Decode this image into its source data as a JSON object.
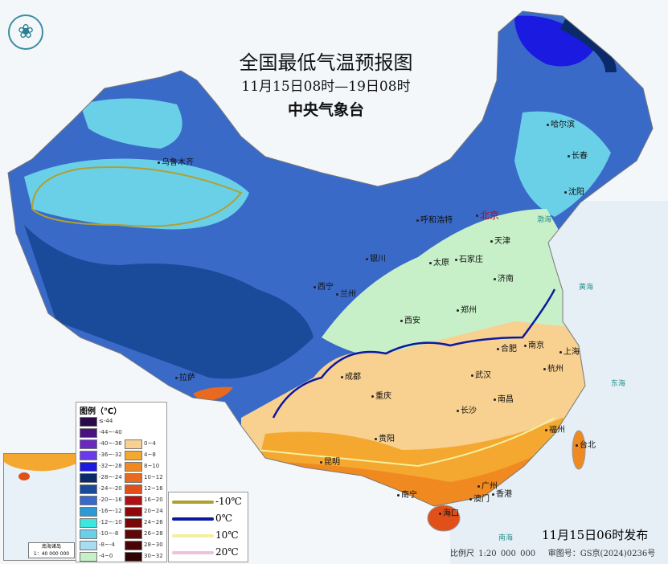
{
  "header": {
    "title": "全国最低气温预报图",
    "period": "11月15日08时—19日08时",
    "agency": "中央气象台",
    "logo_icon": "cma-logo-icon"
  },
  "cities": [
    {
      "name": "乌鲁木齐"
    },
    {
      "name": "哈尔滨"
    },
    {
      "name": "长春"
    },
    {
      "name": "沈阳"
    },
    {
      "name": "呼和浩特"
    },
    {
      "name": "北京",
      "capital": true
    },
    {
      "name": "天津"
    },
    {
      "name": "银川"
    },
    {
      "name": "太原"
    },
    {
      "name": "石家庄"
    },
    {
      "name": "济南"
    },
    {
      "name": "西宁"
    },
    {
      "name": "兰州"
    },
    {
      "name": "西安"
    },
    {
      "name": "郑州"
    },
    {
      "name": "合肥"
    },
    {
      "name": "南京"
    },
    {
      "name": "上海"
    },
    {
      "name": "杭州"
    },
    {
      "name": "拉萨"
    },
    {
      "name": "成都"
    },
    {
      "name": "重庆"
    },
    {
      "name": "武汉"
    },
    {
      "name": "长沙"
    },
    {
      "name": "南昌"
    },
    {
      "name": "福州"
    },
    {
      "name": "台北"
    },
    {
      "name": "贵阳"
    },
    {
      "name": "昆明"
    },
    {
      "name": "南宁"
    },
    {
      "name": "广州"
    },
    {
      "name": "澳门"
    },
    {
      "name": "香港"
    },
    {
      "name": "海口"
    }
  ],
  "seas": {
    "bohai": "渤海",
    "huanghai": "黄海",
    "donghai": "东海",
    "nanhai": "南海"
  },
  "legend": {
    "title": "图例（℃）",
    "cold": [
      {
        "label": "≤-44",
        "color": "#2a0a4a"
      },
      {
        "label": "-44~-40",
        "color": "#4a1280"
      },
      {
        "label": "-40~-36",
        "color": "#6a2ac0"
      },
      {
        "label": "-36~-32",
        "color": "#6a3ae8"
      },
      {
        "label": "-32~-28",
        "color": "#1a1ae0"
      },
      {
        "label": "-28~-24",
        "color": "#0a2a6a"
      },
      {
        "label": "-24~-20",
        "color": "#1a4a9a"
      },
      {
        "label": "-20~-16",
        "color": "#3a6ac8"
      },
      {
        "label": "-16~-12",
        "color": "#2a9ad8"
      },
      {
        "label": "-12~-10",
        "color": "#3ae8e0"
      },
      {
        "label": "-10~-8",
        "color": "#6ad0e8"
      },
      {
        "label": "-8~-4",
        "color": "#a8dcf0"
      },
      {
        "label": "-4~0",
        "color": "#c8f0c8"
      }
    ],
    "warm": [
      {
        "label": "0~4",
        "color": "#f8d090"
      },
      {
        "label": "4~8",
        "color": "#f4a830"
      },
      {
        "label": "8~10",
        "color": "#f08a20"
      },
      {
        "label": "10~12",
        "color": "#e86a20"
      },
      {
        "label": "12~16",
        "color": "#e05018"
      },
      {
        "label": "16~20",
        "color": "#b01010"
      },
      {
        "label": "20~24",
        "color": "#900808"
      },
      {
        "label": "24~26",
        "color": "#780808"
      },
      {
        "label": "26~28",
        "color": "#600808"
      },
      {
        "label": "28~30",
        "color": "#480404"
      },
      {
        "label": "30~32",
        "color": "#300202"
      }
    ],
    "isolines": [
      {
        "label": "-10℃",
        "color": "#b0a030"
      },
      {
        "label": "0℃",
        "color": "#0a1aa0"
      },
      {
        "label": "10℃",
        "color": "#f4f0a0"
      },
      {
        "label": "20℃",
        "color": "#f0c0e0"
      }
    ]
  },
  "inset": {
    "title": "南海诸岛",
    "scale": "1：40 000 000"
  },
  "footer": {
    "issued": "11月15日06时发布",
    "scale": "比例尺  1:20 000 000",
    "map_no": "审图号：GS京(2024)0236号"
  }
}
